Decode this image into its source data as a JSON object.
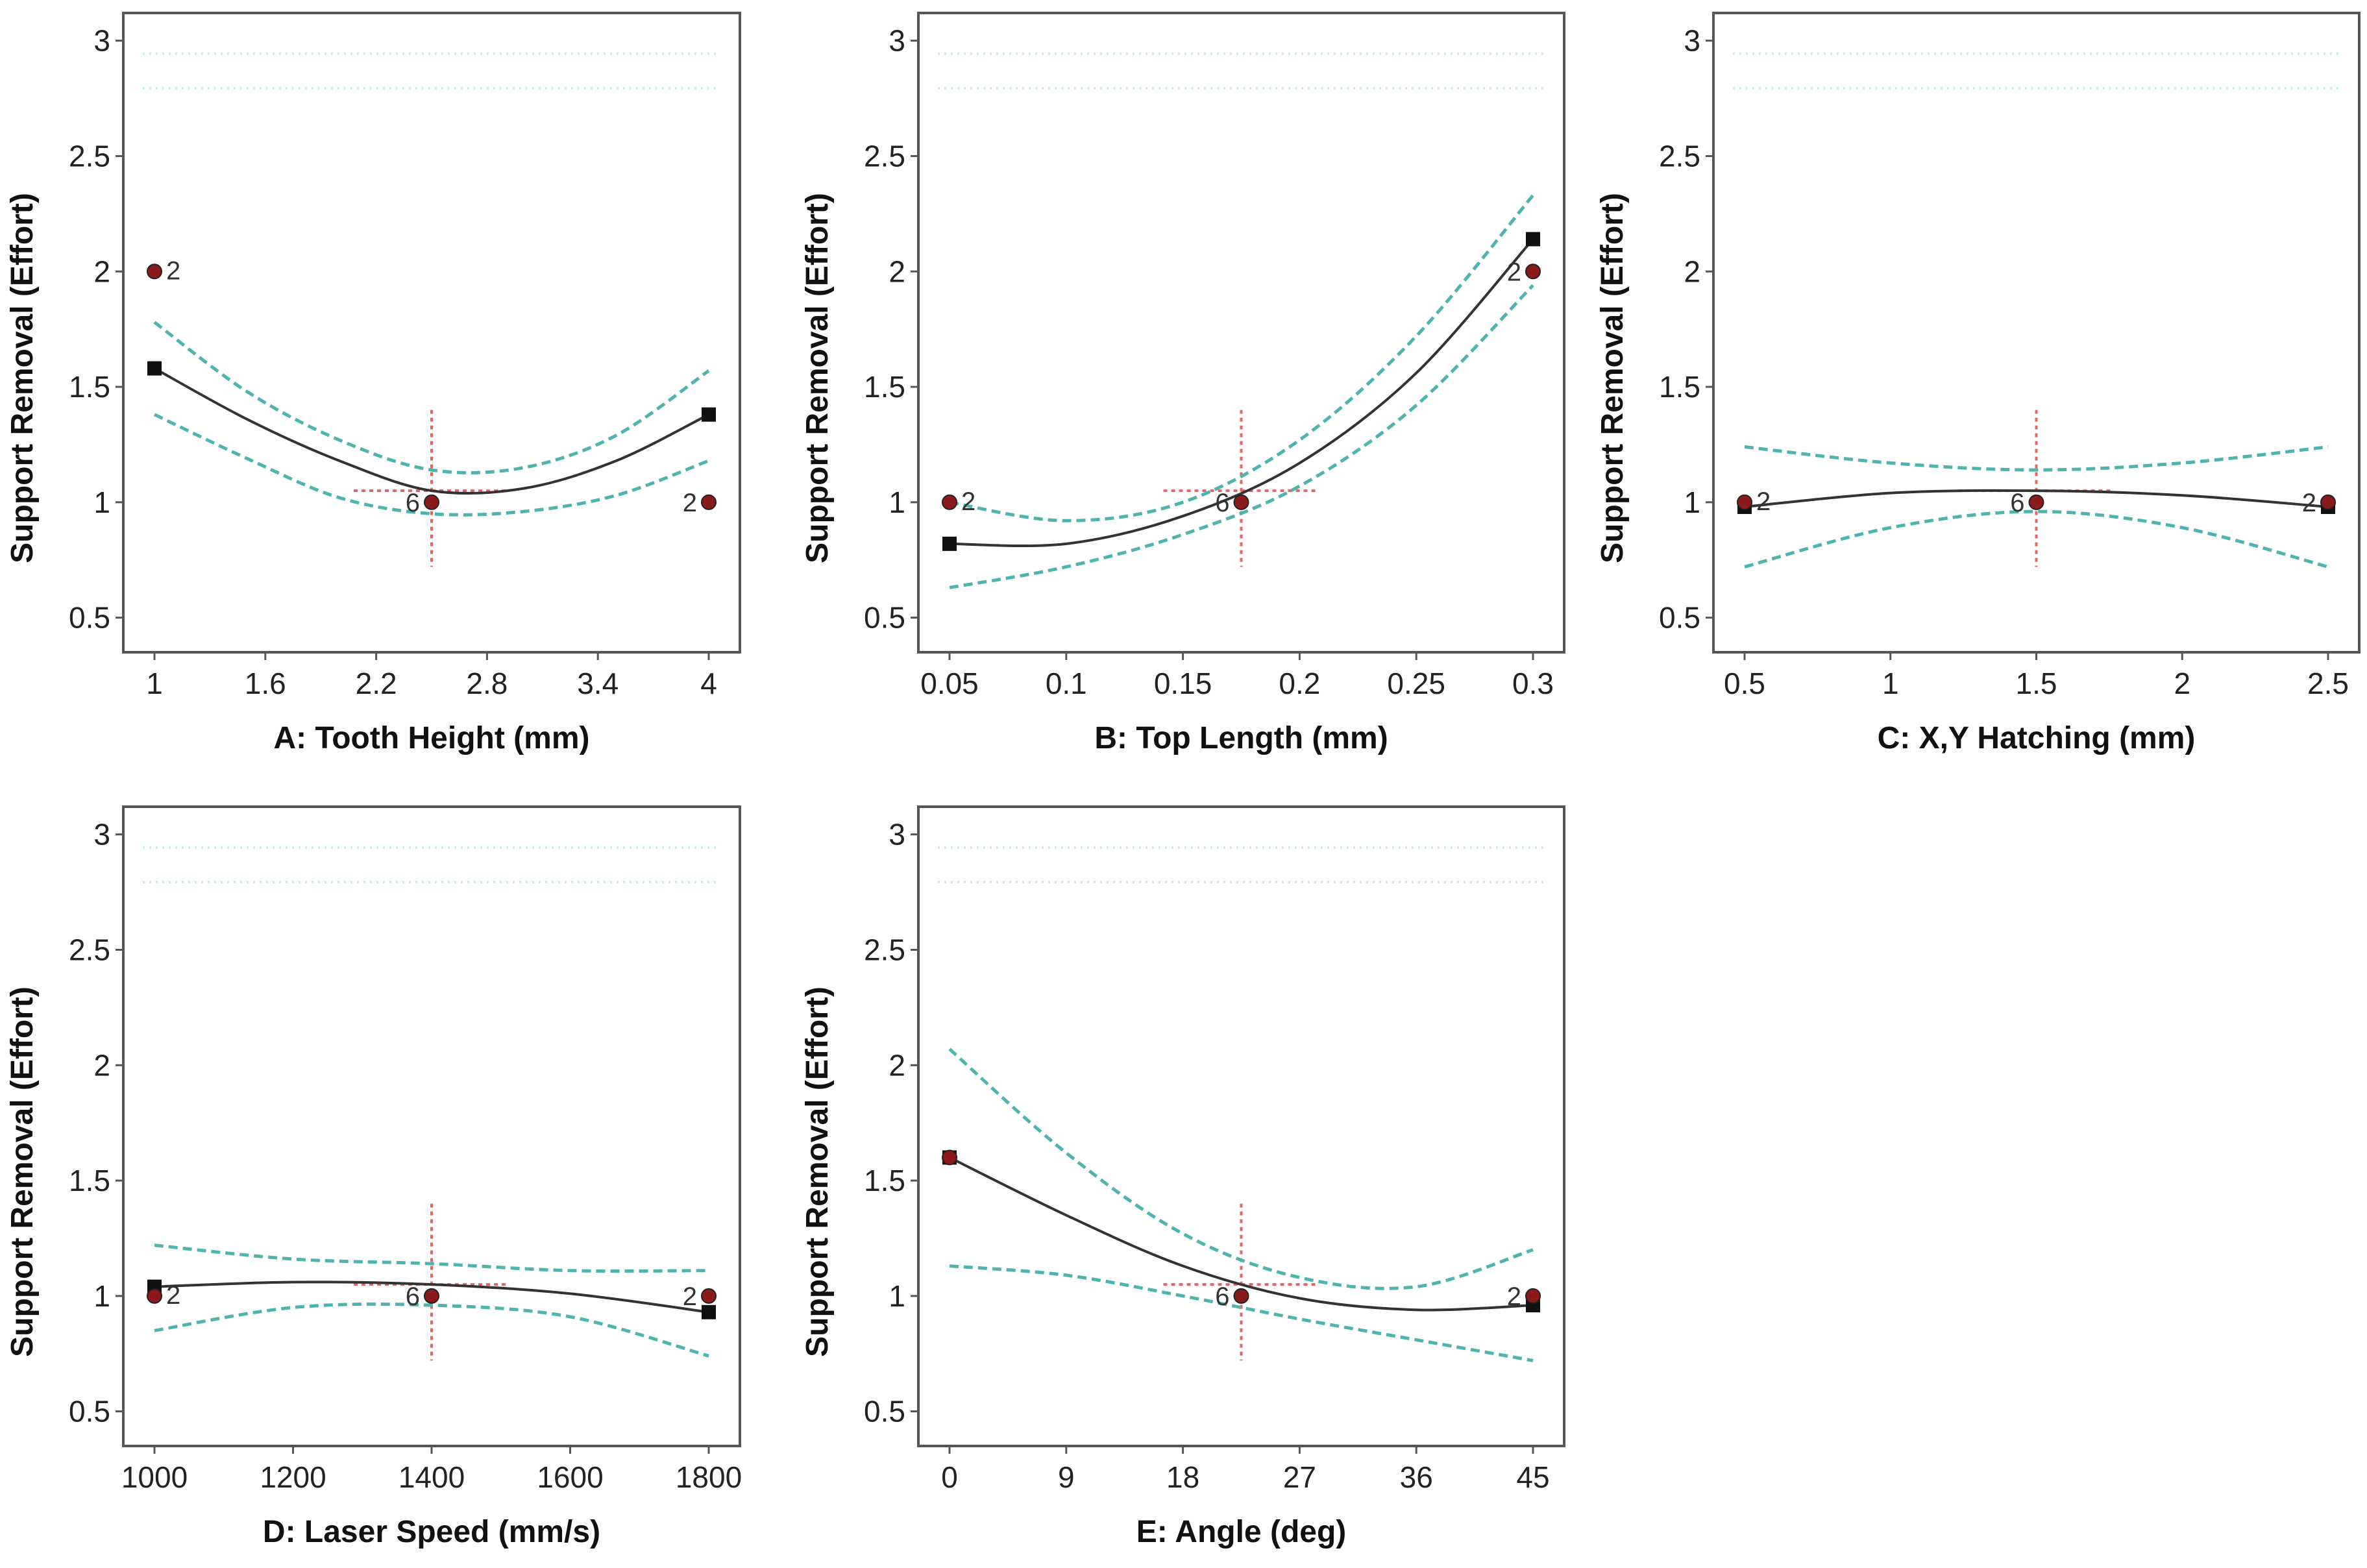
{
  "chart_data": [
    {
      "type": "line",
      "panel": "A",
      "xlabel": "A: Tooth Height (mm)",
      "ylabel": "Support Removal (Effort)",
      "xlim": [
        1,
        4
      ],
      "ylim": [
        0.5,
        3
      ],
      "x_ticks": [
        "1",
        "1.6",
        "2.2",
        "2.8",
        "3.4",
        "4"
      ],
      "y_ticks": [
        "0.5",
        "1",
        "1.5",
        "2",
        "2.5",
        "3"
      ],
      "series": [
        {
          "name": "Predicted",
          "x": [
            1,
            1.5,
            2,
            2.5,
            3,
            3.5,
            4
          ],
          "y": [
            1.58,
            1.36,
            1.18,
            1.05,
            1.06,
            1.18,
            1.38
          ]
        },
        {
          "name": "Upper 95% CI",
          "x": [
            1,
            1.5,
            2,
            2.5,
            3,
            3.5,
            4
          ],
          "y": [
            1.78,
            1.48,
            1.27,
            1.14,
            1.15,
            1.29,
            1.57
          ]
        },
        {
          "name": "Lower 95% CI",
          "x": [
            1,
            1.5,
            2,
            2.5,
            3,
            3.5,
            4
          ],
          "y": [
            1.38,
            1.19,
            1.02,
            0.95,
            0.96,
            1.03,
            1.18
          ]
        }
      ],
      "design_points": [
        {
          "x": 1,
          "y": 2,
          "label": "2"
        },
        {
          "x": 2.5,
          "y": 1,
          "label": "6"
        },
        {
          "x": 4,
          "y": 1,
          "label": "2"
        }
      ],
      "center": {
        "x": 2.5,
        "y": 1.05
      }
    },
    {
      "type": "line",
      "panel": "B",
      "xlabel": "B: Top Length (mm)",
      "ylabel": "Support Removal (Effort)",
      "xlim": [
        0.05,
        0.3
      ],
      "ylim": [
        0.5,
        3
      ],
      "x_ticks": [
        "0.05",
        "0.1",
        "0.15",
        "0.2",
        "0.25",
        "0.3"
      ],
      "y_ticks": [
        "0.5",
        "1",
        "1.5",
        "2",
        "2.5",
        "3"
      ],
      "series": [
        {
          "name": "Predicted",
          "x": [
            0.05,
            0.1,
            0.15,
            0.2,
            0.25,
            0.3
          ],
          "y": [
            0.82,
            0.82,
            0.94,
            1.17,
            1.56,
            2.14
          ]
        },
        {
          "name": "Upper 95% CI",
          "x": [
            0.05,
            0.1,
            0.15,
            0.2,
            0.25,
            0.3
          ],
          "y": [
            1.0,
            0.92,
            1.0,
            1.27,
            1.72,
            2.33
          ]
        },
        {
          "name": "Lower 95% CI",
          "x": [
            0.05,
            0.1,
            0.15,
            0.2,
            0.25,
            0.3
          ],
          "y": [
            0.63,
            0.72,
            0.86,
            1.07,
            1.42,
            1.94
          ]
        }
      ],
      "design_points": [
        {
          "x": 0.05,
          "y": 1,
          "label": "2"
        },
        {
          "x": 0.175,
          "y": 1,
          "label": "6"
        },
        {
          "x": 0.3,
          "y": 2,
          "label": "2"
        }
      ],
      "center": {
        "x": 0.175,
        "y": 1.05
      }
    },
    {
      "type": "line",
      "panel": "C",
      "xlabel": "C: X,Y Hatching (mm)",
      "ylabel": "Support Removal (Effort)",
      "xlim": [
        0.5,
        2.5
      ],
      "ylim": [
        0.5,
        3
      ],
      "x_ticks": [
        "0.5",
        "1",
        "1.5",
        "2",
        "2.5"
      ],
      "y_ticks": [
        "0.5",
        "1",
        "1.5",
        "2",
        "2.5",
        "3"
      ],
      "series": [
        {
          "name": "Predicted",
          "x": [
            0.5,
            1,
            1.5,
            2,
            2.5
          ],
          "y": [
            0.98,
            1.04,
            1.05,
            1.03,
            0.98
          ]
        },
        {
          "name": "Upper 95% CI",
          "x": [
            0.5,
            1,
            1.5,
            2,
            2.5
          ],
          "y": [
            1.24,
            1.17,
            1.14,
            1.17,
            1.24
          ]
        },
        {
          "name": "Lower 95% CI",
          "x": [
            0.5,
            1,
            1.5,
            2,
            2.5
          ],
          "y": [
            0.72,
            0.89,
            0.96,
            0.89,
            0.72
          ]
        }
      ],
      "design_points": [
        {
          "x": 0.5,
          "y": 1,
          "label": "2"
        },
        {
          "x": 1.5,
          "y": 1,
          "label": "6"
        },
        {
          "x": 2.5,
          "y": 1,
          "label": "2"
        }
      ],
      "center": {
        "x": 1.5,
        "y": 1.05
      }
    },
    {
      "type": "line",
      "panel": "D",
      "xlabel": "D: Laser Speed (mm/s)",
      "ylabel": "Support Removal (Effort)",
      "xlim": [
        1000,
        1800
      ],
      "ylim": [
        0.5,
        3
      ],
      "x_ticks": [
        "1000",
        "1200",
        "1400",
        "1600",
        "1800"
      ],
      "y_ticks": [
        "0.5",
        "1",
        "1.5",
        "2",
        "2.5",
        "3"
      ],
      "series": [
        {
          "name": "Predicted",
          "x": [
            1000,
            1200,
            1400,
            1600,
            1800
          ],
          "y": [
            1.04,
            1.06,
            1.05,
            1.01,
            0.93
          ]
        },
        {
          "name": "Upper 95% CI",
          "x": [
            1000,
            1200,
            1400,
            1600,
            1800
          ],
          "y": [
            1.22,
            1.16,
            1.14,
            1.11,
            1.11
          ]
        },
        {
          "name": "Lower 95% CI",
          "x": [
            1000,
            1200,
            1400,
            1600,
            1800
          ],
          "y": [
            0.85,
            0.95,
            0.96,
            0.91,
            0.74
          ]
        }
      ],
      "design_points": [
        {
          "x": 1000,
          "y": 1,
          "label": "2"
        },
        {
          "x": 1400,
          "y": 1,
          "label": "6"
        },
        {
          "x": 1800,
          "y": 1,
          "label": "2"
        }
      ],
      "center": {
        "x": 1400,
        "y": 1.05
      }
    },
    {
      "type": "line",
      "panel": "E",
      "xlabel": "E: Angle (deg)",
      "ylabel": "Support Removal (Effort)",
      "xlim": [
        0,
        45
      ],
      "ylim": [
        0.5,
        3
      ],
      "x_ticks": [
        "0",
        "9",
        "18",
        "27",
        "36",
        "45"
      ],
      "y_ticks": [
        "0.5",
        "1",
        "1.5",
        "2",
        "2.5",
        "3"
      ],
      "series": [
        {
          "name": "Predicted",
          "x": [
            0,
            9,
            18,
            27,
            36,
            45
          ],
          "y": [
            1.6,
            1.35,
            1.13,
            0.99,
            0.94,
            0.96
          ]
        },
        {
          "name": "Upper 95% CI",
          "x": [
            0,
            9,
            18,
            27,
            36,
            45
          ],
          "y": [
            2.07,
            1.62,
            1.27,
            1.08,
            1.04,
            1.2
          ]
        },
        {
          "name": "Lower 95% CI",
          "x": [
            0,
            9,
            18,
            27,
            36,
            45
          ],
          "y": [
            1.13,
            1.09,
            1.0,
            0.9,
            0.81,
            0.72
          ]
        }
      ],
      "design_points": [
        {
          "x": 0,
          "y": 1.6,
          "label": ""
        },
        {
          "x": 22.5,
          "y": 1,
          "label": "6"
        },
        {
          "x": 45,
          "y": 1,
          "label": "2"
        }
      ],
      "center": {
        "x": 22.5,
        "y": 1.05
      }
    }
  ],
  "colors": {
    "prediction": "#333333",
    "confidence_band": "#4fb3b0",
    "design_point": "#8b1a1a",
    "center_cross": "#e06666",
    "frame": "#555555",
    "faint_grid": "#c8ece8"
  }
}
